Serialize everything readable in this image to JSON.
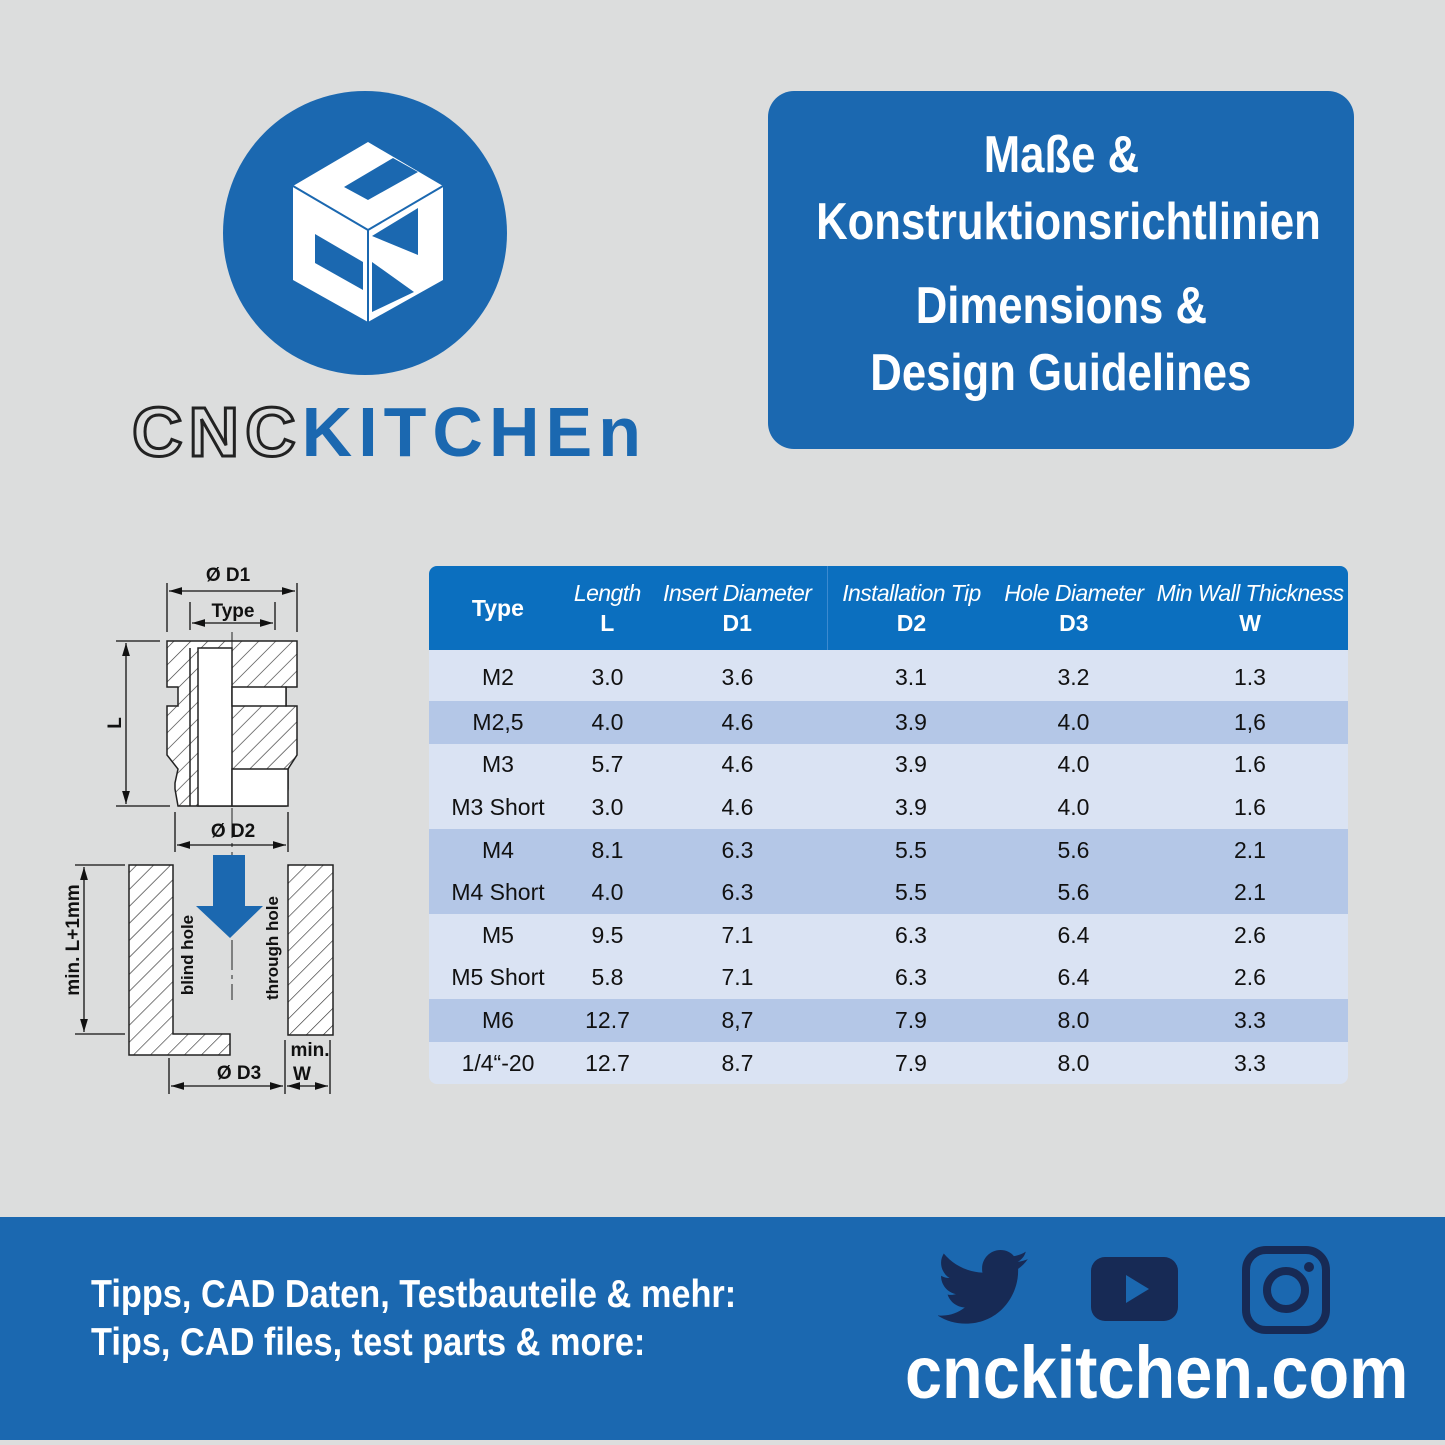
{
  "brand": {
    "wordmark_outline": "CNC",
    "wordmark_solid": "KITCHEn",
    "color_blue": "#1b68b0",
    "logo_icon": "cnc-cube-logo"
  },
  "title": {
    "line1": "Maße &",
    "line2": "Konstruktionsrichtlinien",
    "line3": "Dimensions &",
    "line4": "Design Guidelines"
  },
  "diagram": {
    "d1": "Ø D1",
    "type": "Type",
    "l": "L",
    "d2": "Ø D2",
    "min_depth": "min. L+1mm",
    "blind_hole": "blind hole",
    "through_hole": "through hole",
    "d3": "Ø D3",
    "min": "min.",
    "w": "W",
    "arrow_color": "#1b68b0"
  },
  "table": {
    "headers": [
      {
        "name": "Type",
        "symbol": ""
      },
      {
        "name": "Length",
        "symbol": "L"
      },
      {
        "name": "Insert Diameter",
        "symbol": "D1"
      },
      {
        "name": "Installation Tip",
        "symbol": "D2"
      },
      {
        "name": "Hole Diameter",
        "symbol": "D3"
      },
      {
        "name": "Min Wall Thickness",
        "symbol": "W"
      }
    ],
    "rows": [
      [
        "M2",
        "3.0",
        "3.6",
        "3.1",
        "3.2",
        "1.3"
      ],
      [
        "M2,5",
        "4.0",
        "4.6",
        "3.9",
        "4.0",
        "1,6"
      ],
      [
        "M3",
        "5.7",
        "4.6",
        "3.9",
        "4.0",
        "1.6"
      ],
      [
        "M3 Short",
        "3.0",
        "4.6",
        "3.9",
        "4.0",
        "1.6"
      ],
      [
        "M4",
        "8.1",
        "6.3",
        "5.5",
        "5.6",
        "2.1"
      ],
      [
        "M4 Short",
        "4.0",
        "6.3",
        "5.5",
        "5.6",
        "2.1"
      ],
      [
        "M5",
        "9.5",
        "7.1",
        "6.3",
        "6.4",
        "2.6"
      ],
      [
        "M5 Short",
        "5.8",
        "7.1",
        "6.3",
        "6.4",
        "2.6"
      ],
      [
        "M6",
        "12.7",
        "8,7",
        "7.9",
        "8.0",
        "3.3"
      ],
      [
        "1/4“-20",
        "12.7",
        "8.7",
        "7.9",
        "8.0",
        "3.3"
      ]
    ],
    "header_color": "#0b6fbf",
    "row_light": "#dae3f3",
    "row_dark": "#b4c7e7"
  },
  "footer": {
    "line_de": "Tipps, CAD Daten, Testbauteile & mehr:",
    "line_en": "Tips, CAD files, test parts & more:",
    "website": "cnckitchen.com",
    "icons": [
      "twitter-icon",
      "youtube-icon",
      "instagram-icon"
    ],
    "icon_color": "#172a55"
  }
}
